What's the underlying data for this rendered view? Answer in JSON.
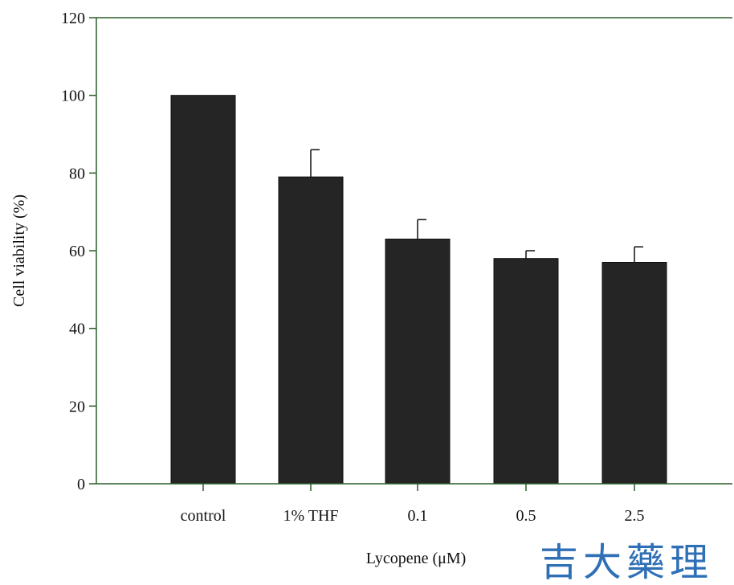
{
  "chart_data": {
    "type": "bar",
    "categories": [
      "control",
      "1% THF",
      "0.1",
      "0.5",
      "2.5"
    ],
    "values": [
      100,
      79,
      63,
      58,
      57
    ],
    "errors": [
      0,
      7,
      5,
      2,
      4
    ],
    "title": "",
    "xlabel": "Lycopene (μM)",
    "ylabel": "Cell viability (%)",
    "ylim": [
      0,
      120
    ],
    "yticks": [
      0,
      20,
      40,
      60,
      80,
      100,
      120
    ],
    "grid": false,
    "legend": "none",
    "colors": {
      "bar": "#252525",
      "axis": "#2a5e2a",
      "text": "#111111"
    }
  },
  "watermark": {
    "text": "吉大藥理"
  }
}
